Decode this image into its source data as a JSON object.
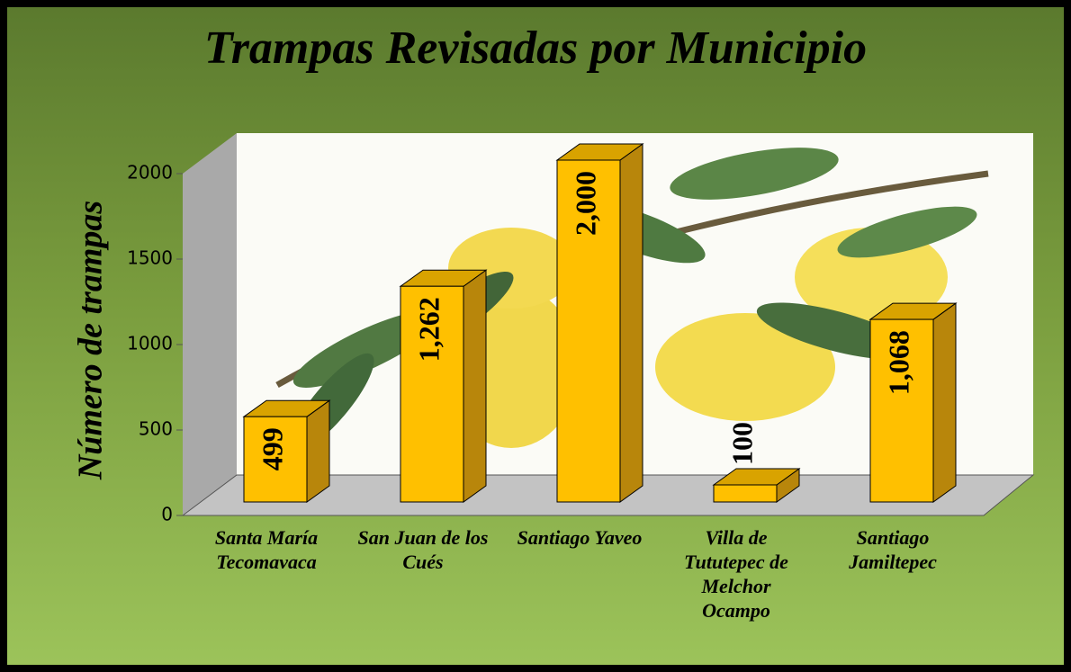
{
  "chart_data": {
    "type": "bar3d",
    "title": "Trampas Revisadas por Municipio",
    "y_label": "Número de trampas",
    "categories": [
      "Santa María Tecomavaca",
      "San Juan de los Cués",
      "Santiago Yaveo",
      "Villa de Tututepec de Melchor Ocampo",
      "Santiago Jamiltepec"
    ],
    "values": [
      499,
      1262,
      2000,
      100,
      1068
    ],
    "value_labels": [
      "499",
      "1,262",
      "2,000",
      "100",
      "1,068"
    ],
    "color": "#ffc000",
    "ylim": [
      0,
      2000
    ],
    "yticks": [
      0,
      500,
      1000,
      1500,
      2000
    ]
  }
}
